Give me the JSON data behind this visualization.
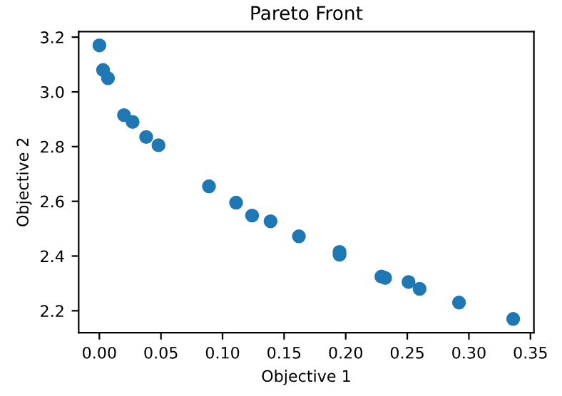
{
  "chart_data": {
    "type": "scatter",
    "title": "Pareto Front",
    "xlabel": "Objective 1",
    "ylabel": "Objective 2",
    "x": [
      0.0,
      0.003,
      0.007,
      0.02,
      0.027,
      0.038,
      0.048,
      0.089,
      0.111,
      0.124,
      0.139,
      0.162,
      0.195,
      0.195,
      0.229,
      0.232,
      0.251,
      0.26,
      0.292,
      0.336
    ],
    "series": [
      {
        "color": "#1f77b4",
        "values": [
          3.17,
          3.08,
          3.05,
          2.915,
          2.89,
          2.835,
          2.805,
          2.655,
          2.595,
          2.548,
          2.527,
          2.472,
          2.405,
          2.415,
          2.325,
          2.32,
          2.305,
          2.28,
          2.23,
          2.17
        ]
      }
    ],
    "xlim": [
      -0.0168,
      0.3528
    ],
    "ylim": [
      2.12,
      3.22
    ],
    "xticks": [
      {
        "value": 0,
        "label": "0.00"
      },
      {
        "value": 0.05,
        "label": "0.05"
      },
      {
        "value": 0.1,
        "label": "0.10"
      },
      {
        "value": 0.15,
        "label": "0.15"
      },
      {
        "value": 0.2,
        "label": "0.20"
      },
      {
        "value": 0.25,
        "label": "0.25"
      },
      {
        "value": 0.3,
        "label": "0.30"
      },
      {
        "value": 0.35,
        "label": "0.35"
      }
    ],
    "yticks": [
      2.2,
      2.4,
      2.6,
      2.8,
      {
        "value": 3,
        "label": "3.0"
      },
      3.2
    ],
    "marker": "circle",
    "grid": false
  }
}
